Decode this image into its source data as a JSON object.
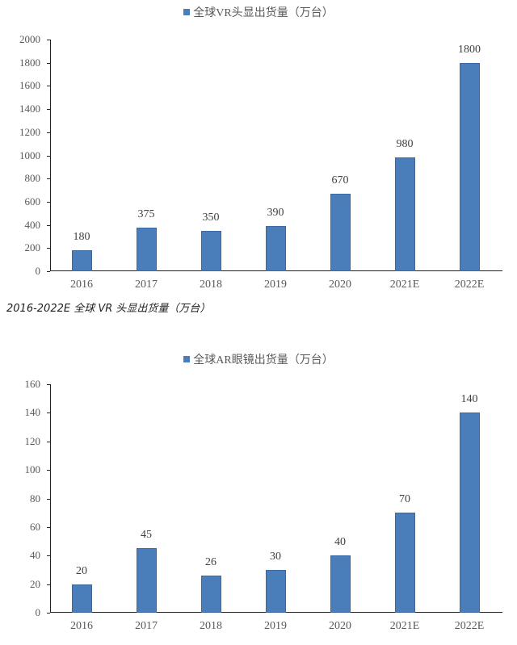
{
  "chart_data": [
    {
      "type": "bar",
      "title": "全球VR头显出货量（万台）",
      "legend": [
        "全球VR头显出货量（万台）"
      ],
      "categories": [
        "2016",
        "2017",
        "2018",
        "2019",
        "2020",
        "2021E",
        "2022E"
      ],
      "values": [
        180,
        375,
        350,
        390,
        670,
        980,
        1800
      ],
      "value_labels": [
        "180",
        "375",
        "350",
        "390",
        "670",
        "980",
        "1800"
      ],
      "yticks": [
        "0",
        "200",
        "400",
        "600",
        "800",
        "1000",
        "1200",
        "1400",
        "1600",
        "1800",
        "2000"
      ],
      "ylim": [
        0,
        2000
      ],
      "xlabel": "",
      "ylabel": "",
      "grid": false,
      "legend_position": "top",
      "color": "#4a7ebb"
    },
    {
      "type": "bar",
      "title": "全球AR眼镜出货量（万台）",
      "legend": [
        "全球AR眼镜出货量（万台）"
      ],
      "categories": [
        "2016",
        "2017",
        "2018",
        "2019",
        "2020",
        "2021E",
        "2022E"
      ],
      "values": [
        20,
        45,
        26,
        30,
        40,
        70,
        140
      ],
      "value_labels": [
        "20",
        "45",
        "26",
        "30",
        "40",
        "70",
        "140"
      ],
      "yticks": [
        "0",
        "20",
        "40",
        "60",
        "80",
        "100",
        "120",
        "140",
        "160"
      ],
      "ylim": [
        0,
        160
      ],
      "xlabel": "",
      "ylabel": "",
      "grid": false,
      "legend_position": "top",
      "color": "#4a7ebb"
    }
  ],
  "caption": "2016-2022E 全球 VR 头显出货量（万台）"
}
